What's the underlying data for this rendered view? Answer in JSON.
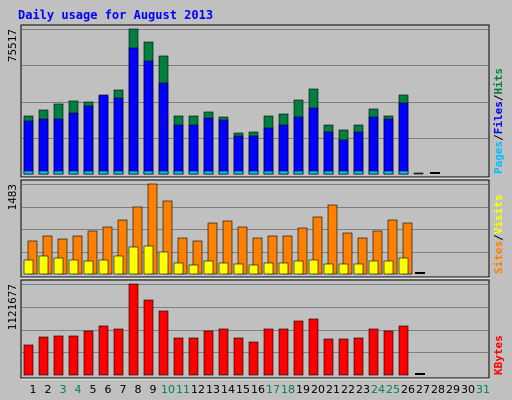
{
  "chart_data": {
    "type": "bar",
    "title": "Daily usage for August 2013",
    "x": [
      1,
      2,
      3,
      4,
      5,
      6,
      7,
      8,
      9,
      10,
      11,
      12,
      13,
      14,
      15,
      16,
      17,
      18,
      19,
      20,
      21,
      22,
      23,
      24,
      25,
      26,
      27,
      28,
      29,
      30,
      31
    ],
    "weekend_days": [
      3,
      4,
      10,
      11,
      17,
      18,
      24,
      25,
      31
    ],
    "panels": {
      "top": {
        "ymax_label": "75517",
        "ymax": 75517,
        "series": [
          {
            "name": "Hits",
            "color": "#008040",
            "values": [
              30300,
              33500,
              36500,
              38200,
              37700,
              40700,
              43700,
              75517,
              68500,
              61700,
              30300,
              30300,
              32100,
              29700,
              21500,
              22000,
              30300,
              31000,
              38700,
              44500,
              25300,
              23000,
              25500,
              34000,
              30300,
              41300,
              500,
              0,
              0,
              0,
              0
            ]
          },
          {
            "name": "Files",
            "color": "#0000FF",
            "values": [
              27600,
              28900,
              28900,
              32000,
              35500,
              41000,
              39500,
              65500,
              59000,
              47300,
              25500,
              25500,
              29300,
              27900,
              19600,
              19800,
              23700,
              25500,
              29700,
              34500,
              22000,
              17800,
              21800,
              29700,
              28400,
              37000,
              0,
              0,
              0,
              0,
              0
            ]
          },
          {
            "name": "Pages",
            "color": "#00C0FF",
            "values": [
              1500,
              1300,
              1200,
              1300,
              1500,
              1700,
              1300,
              1400,
              1500,
              1500,
              900,
              1200,
              1100,
              1100,
              800,
              1000,
              1100,
              1000,
              1000,
              1400,
              800,
              700,
              800,
              1000,
              1000,
              1400,
              0,
              0,
              0,
              0,
              0
            ]
          }
        ]
      },
      "middle": {
        "ymax_label": "1483",
        "ymax": 1483,
        "series": [
          {
            "name": "Visits",
            "color": "#FFFF00",
            "values": [
              234,
              293,
              258,
              234,
              211,
              234,
              293,
              445,
              469,
              363,
              188,
              141,
              211,
              188,
              164,
              141,
              188,
              188,
              211,
              234,
              164,
              164,
              164,
              211,
              211,
              270,
              0,
              0,
              0,
              0,
              0
            ]
          },
          {
            "name": "Sites",
            "color": "#FF8000",
            "values": [
              551,
              633,
              574,
              621,
              715,
              774,
              891,
              1098,
              1483,
              1211,
              598,
              539,
              844,
              879,
              774,
              586,
              621,
              621,
              750,
              937,
              1137,
              680,
              586,
              715,
              891,
              844,
              0,
              0,
              0,
              0,
              0
            ]
          }
        ]
      },
      "bottom": {
        "ymax_label": "1121677",
        "ymax": 1121677,
        "series": [
          {
            "name": "KBytes",
            "color": "#FF0000",
            "values": [
              364000,
              470000,
              484000,
              484000,
              539000,
              608000,
              564000,
              1121677,
              930000,
              793000,
              457000,
              457000,
              539000,
              564000,
              457000,
              404000,
              564000,
              564000,
              664000,
              690000,
              440000,
              440000,
              457000,
              564000,
              539000,
              598000,
              0,
              0,
              0,
              0,
              0
            ]
          }
        ]
      }
    }
  }
}
